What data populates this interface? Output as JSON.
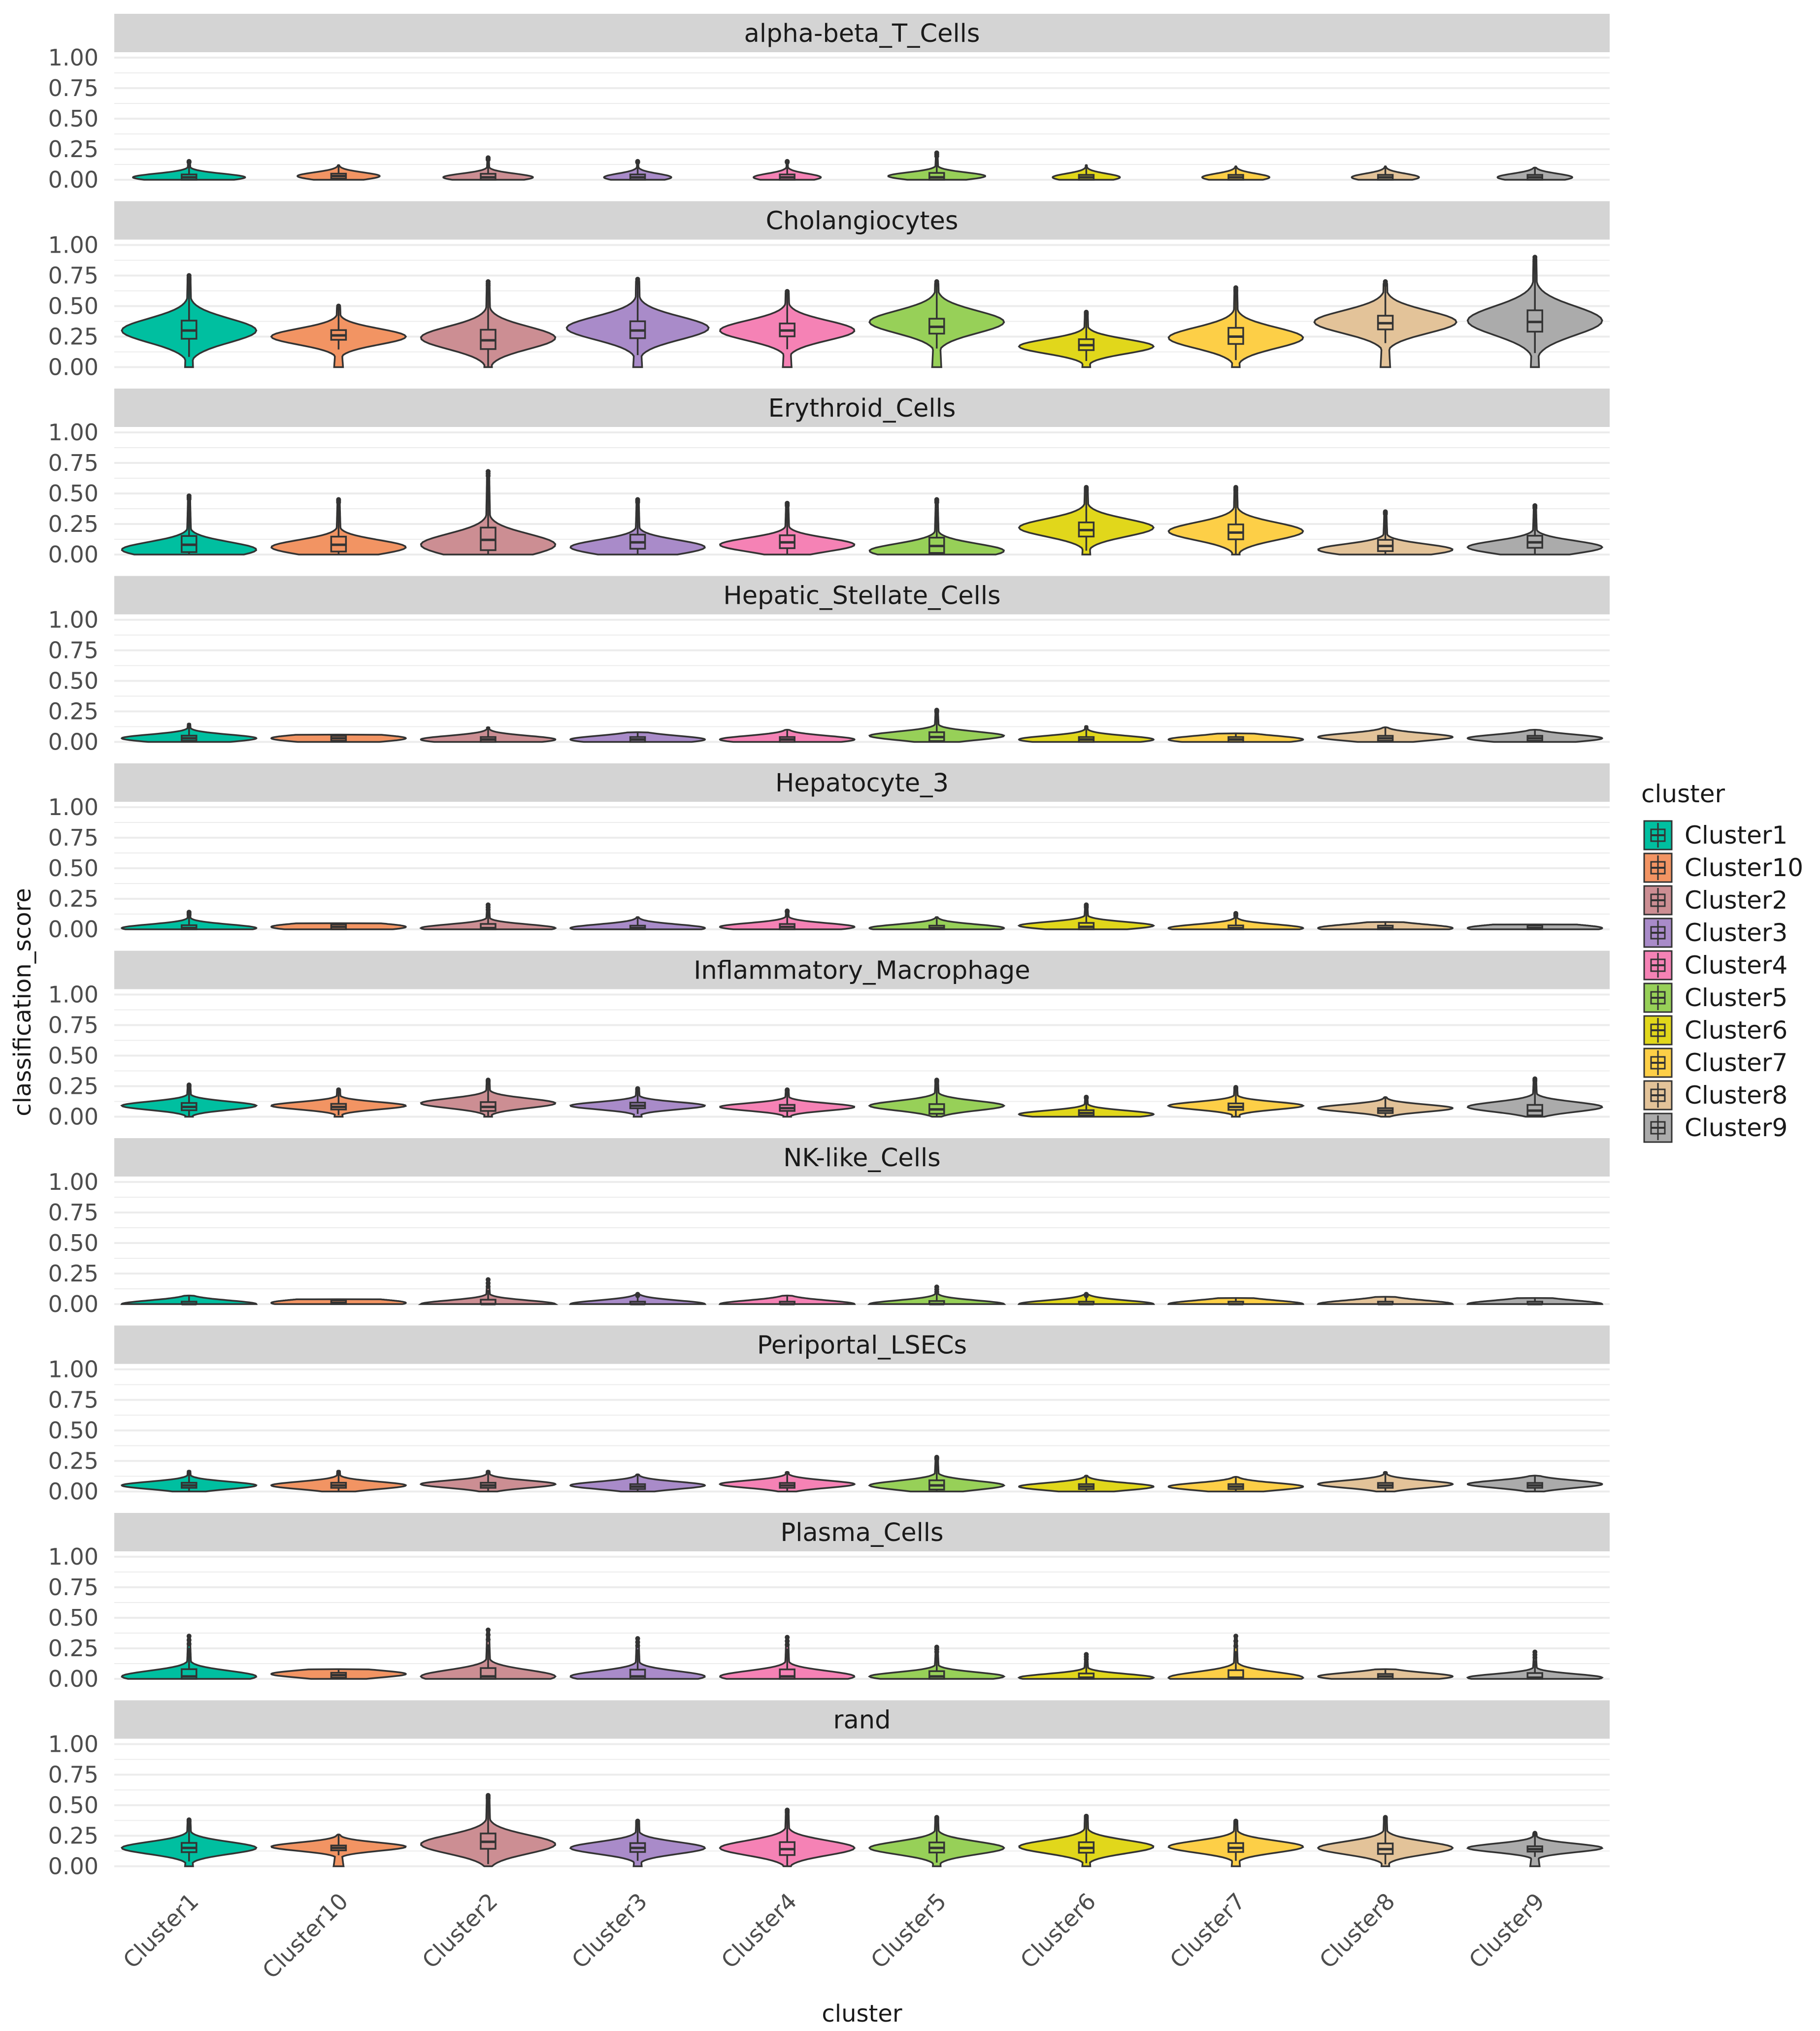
{
  "chart_data": {
    "type": "violin",
    "facet_variable": "cell_type",
    "xlabel": "cluster",
    "ylabel": "classification_score",
    "ylim": [
      0,
      1
    ],
    "yticks": [
      "0.00",
      "0.25",
      "0.50",
      "0.75",
      "1.00"
    ],
    "categories": [
      "Cluster1",
      "Cluster10",
      "Cluster2",
      "Cluster3",
      "Cluster4",
      "Cluster5",
      "Cluster6",
      "Cluster7",
      "Cluster8",
      "Cluster9"
    ],
    "legend": {
      "title": "cluster",
      "position": "right",
      "entries": [
        {
          "label": "Cluster1",
          "color": "#00BFA0"
        },
        {
          "label": "Cluster10",
          "color": "#F29463"
        },
        {
          "label": "Cluster2",
          "color": "#CC8E93"
        },
        {
          "label": "Cluster3",
          "color": "#A98BC9"
        },
        {
          "label": "Cluster4",
          "color": "#F582B5"
        },
        {
          "label": "Cluster5",
          "color": "#97D058"
        },
        {
          "label": "Cluster6",
          "color": "#E1D71B"
        },
        {
          "label": "Cluster7",
          "color": "#FDCF47"
        },
        {
          "label": "Cluster8",
          "color": "#E3C399"
        },
        {
          "label": "Cluster9",
          "color": "#ABABAB"
        }
      ]
    },
    "facets": [
      {
        "title": "alpha-beta_T_Cells",
        "median": [
          0.02,
          0.03,
          0.02,
          0.02,
          0.02,
          0.02,
          0.02,
          0.02,
          0.02,
          0.02
        ],
        "max": [
          0.15,
          0.12,
          0.18,
          0.15,
          0.15,
          0.22,
          0.12,
          0.11,
          0.11,
          0.1
        ],
        "mode": [
          0.02,
          0.03,
          0.02,
          0.02,
          0.02,
          0.03,
          0.02,
          0.02,
          0.02,
          0.02
        ],
        "width": [
          0.75,
          0.55,
          0.6,
          0.45,
          0.45,
          0.65,
          0.45,
          0.45,
          0.45,
          0.5
        ]
      },
      {
        "title": "Cholangiocytes",
        "median": [
          0.3,
          0.26,
          0.22,
          0.3,
          0.3,
          0.33,
          0.18,
          0.25,
          0.36,
          0.37
        ],
        "max": [
          0.75,
          0.5,
          0.7,
          0.72,
          0.62,
          0.7,
          0.45,
          0.65,
          0.7,
          0.9
        ],
        "mode": [
          0.3,
          0.25,
          0.24,
          0.32,
          0.3,
          0.37,
          0.17,
          0.24,
          0.37,
          0.38
        ],
        "width": [
          0.9,
          0.9,
          0.9,
          0.95,
          0.9,
          0.9,
          0.9,
          0.9,
          0.95,
          0.9
        ]
      },
      {
        "title": "Erythroid_Cells",
        "median": [
          0.08,
          0.08,
          0.12,
          0.1,
          0.1,
          0.07,
          0.2,
          0.18,
          0.07,
          0.1
        ],
        "max": [
          0.48,
          0.45,
          0.68,
          0.45,
          0.42,
          0.45,
          0.55,
          0.55,
          0.35,
          0.4
        ],
        "mode": [
          0.04,
          0.06,
          0.08,
          0.06,
          0.08,
          0.03,
          0.22,
          0.19,
          0.04,
          0.06
        ],
        "width": [
          0.9,
          0.9,
          0.9,
          0.9,
          0.9,
          0.9,
          0.9,
          0.9,
          0.9,
          0.9
        ]
      },
      {
        "title": "Hepatic_Stellate_Cells",
        "median": [
          0.03,
          0.03,
          0.02,
          0.02,
          0.02,
          0.04,
          0.02,
          0.02,
          0.03,
          0.03
        ],
        "max": [
          0.15,
          0.06,
          0.12,
          0.08,
          0.1,
          0.26,
          0.13,
          0.07,
          0.12,
          0.1
        ],
        "mode": [
          0.03,
          0.03,
          0.02,
          0.02,
          0.02,
          0.05,
          0.02,
          0.02,
          0.04,
          0.03
        ],
        "width": [
          0.9,
          0.9,
          0.9,
          0.9,
          0.9,
          0.9,
          0.9,
          0.9,
          0.9,
          0.9
        ]
      },
      {
        "title": "Hepatocyte_3",
        "median": [
          0.01,
          0.02,
          0.01,
          0.01,
          0.02,
          0.01,
          0.02,
          0.01,
          0.01,
          0.01
        ],
        "max": [
          0.14,
          0.05,
          0.2,
          0.1,
          0.15,
          0.1,
          0.2,
          0.13,
          0.06,
          0.04
        ],
        "mode": [
          0.01,
          0.02,
          0.01,
          0.01,
          0.02,
          0.01,
          0.03,
          0.01,
          0.01,
          0.01
        ],
        "width": [
          0.9,
          0.9,
          0.9,
          0.9,
          0.9,
          0.9,
          0.9,
          0.9,
          0.9,
          0.9
        ]
      },
      {
        "title": "Inflammatory_Macrophage",
        "median": [
          0.08,
          0.08,
          0.08,
          0.09,
          0.07,
          0.06,
          0.03,
          0.08,
          0.05,
          0.05
        ],
        "max": [
          0.26,
          0.22,
          0.3,
          0.23,
          0.22,
          0.3,
          0.16,
          0.24,
          0.16,
          0.31
        ],
        "mode": [
          0.09,
          0.09,
          0.11,
          0.09,
          0.08,
          0.09,
          0.02,
          0.09,
          0.07,
          0.08
        ],
        "width": [
          0.9,
          0.9,
          0.9,
          0.9,
          0.9,
          0.9,
          0.9,
          0.9,
          0.9,
          0.9
        ]
      },
      {
        "title": "NK-like_Cells",
        "median": [
          0.0,
          0.01,
          0.0,
          0.0,
          0.0,
          0.0,
          0.0,
          0.0,
          0.0,
          0.0
        ],
        "max": [
          0.07,
          0.04,
          0.2,
          0.08,
          0.07,
          0.14,
          0.08,
          0.05,
          0.06,
          0.05
        ],
        "mode": [
          0.0,
          0.01,
          0.0,
          0.0,
          0.0,
          0.0,
          0.0,
          0.0,
          0.0,
          0.0
        ],
        "width": [
          0.9,
          0.9,
          0.9,
          0.9,
          0.9,
          0.9,
          0.9,
          0.9,
          0.9,
          0.9
        ]
      },
      {
        "title": "Periportal_LSECs",
        "median": [
          0.05,
          0.05,
          0.05,
          0.04,
          0.05,
          0.05,
          0.04,
          0.04,
          0.05,
          0.05
        ],
        "max": [
          0.17,
          0.17,
          0.17,
          0.14,
          0.16,
          0.28,
          0.13,
          0.12,
          0.16,
          0.13
        ],
        "mode": [
          0.05,
          0.05,
          0.06,
          0.05,
          0.06,
          0.05,
          0.04,
          0.04,
          0.06,
          0.06
        ],
        "width": [
          0.9,
          0.9,
          0.9,
          0.9,
          0.9,
          0.9,
          0.9,
          0.9,
          0.9,
          0.9
        ]
      },
      {
        "title": "Plasma_Cells",
        "median": [
          0.02,
          0.03,
          0.02,
          0.02,
          0.02,
          0.02,
          0.01,
          0.01,
          0.02,
          0.01
        ],
        "max": [
          0.35,
          0.08,
          0.4,
          0.33,
          0.34,
          0.26,
          0.2,
          0.35,
          0.08,
          0.22
        ],
        "mode": [
          0.02,
          0.04,
          0.02,
          0.02,
          0.02,
          0.02,
          0.01,
          0.01,
          0.02,
          0.01
        ],
        "width": [
          0.9,
          0.9,
          0.9,
          0.9,
          0.9,
          0.9,
          0.9,
          0.9,
          0.9,
          0.9
        ]
      },
      {
        "title": "rand",
        "median": [
          0.15,
          0.15,
          0.2,
          0.15,
          0.14,
          0.15,
          0.15,
          0.15,
          0.14,
          0.14
        ],
        "max": [
          0.38,
          0.26,
          0.58,
          0.37,
          0.46,
          0.4,
          0.41,
          0.37,
          0.4,
          0.27
        ],
        "mode": [
          0.15,
          0.16,
          0.18,
          0.15,
          0.15,
          0.15,
          0.16,
          0.16,
          0.15,
          0.15
        ],
        "width": [
          0.9,
          0.9,
          0.9,
          0.9,
          0.9,
          0.9,
          0.9,
          0.9,
          0.9,
          0.9
        ]
      }
    ]
  }
}
